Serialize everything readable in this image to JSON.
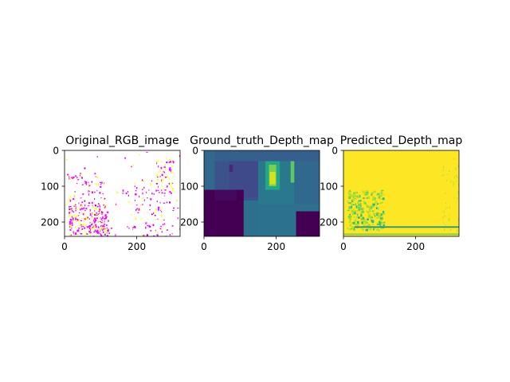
{
  "figure": {
    "background": "#ffffff",
    "panels": [
      {
        "title": "Original_RGB_image",
        "xticks": [
          "0",
          "200"
        ],
        "yticks": [
          "0",
          "100",
          "200"
        ],
        "image_kind": "sparse-noise-on-white",
        "dominant_colors": [
          "#ffffff",
          "#ff00ff",
          "#ffff00"
        ]
      },
      {
        "title": "Ground_truth_Depth_map",
        "xticks": [
          "0",
          "200"
        ],
        "yticks": [
          "0",
          "100",
          "200"
        ],
        "image_kind": "viridis-depth-map",
        "dominant_colors": [
          "#440154",
          "#3b528b",
          "#21918c",
          "#5ec962",
          "#fde725"
        ]
      },
      {
        "title": "Predicted_Depth_map",
        "xticks": [
          "0",
          "200"
        ],
        "yticks": [
          "0",
          "100",
          "200"
        ],
        "image_kind": "mostly-yellow-depth-map",
        "dominant_colors": [
          "#fde725",
          "#b5de2b",
          "#35b779"
        ]
      }
    ]
  }
}
